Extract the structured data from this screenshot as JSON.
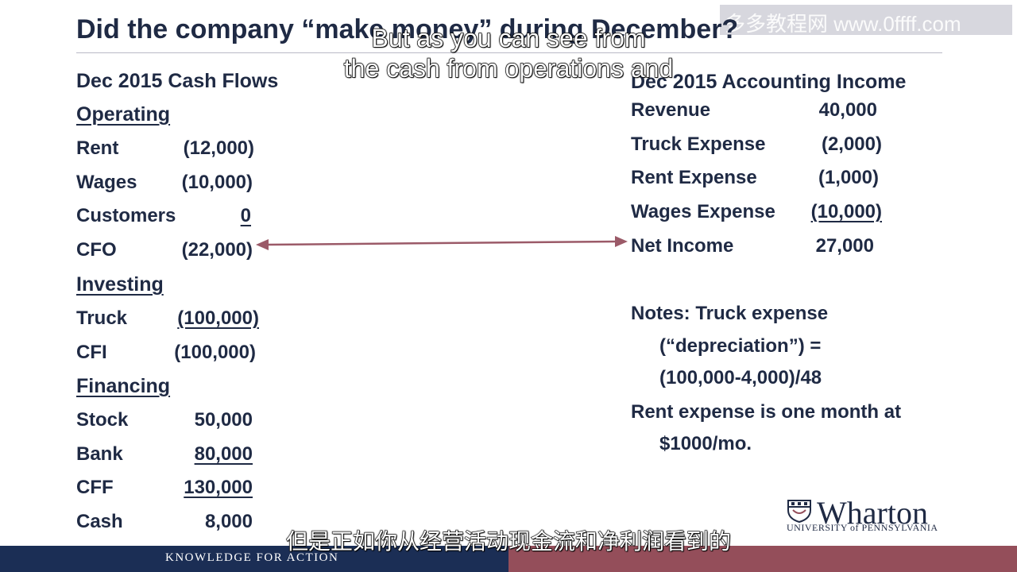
{
  "slide": {
    "title": "Did the company “make money” during December?",
    "cash_flows": {
      "heading": "Dec 2015 Cash Flows",
      "operating": {
        "heading": "Operating",
        "rows": [
          {
            "label": "Rent",
            "value": "(12,000)"
          },
          {
            "label": "Wages",
            "value": "(10,000)"
          },
          {
            "label": "Customers",
            "value": "0"
          },
          {
            "label": "CFO",
            "value": "(22,000)"
          }
        ]
      },
      "investing": {
        "heading": "Investing",
        "rows": [
          {
            "label": "Truck",
            "value": "(100,000)"
          },
          {
            "label": "CFI",
            "value": "(100,000)"
          }
        ]
      },
      "financing": {
        "heading": "Financing",
        "rows": [
          {
            "label": "Stock",
            "value": "50,000"
          },
          {
            "label": "Bank",
            "value": "80,000"
          },
          {
            "label": "CFF",
            "value": "130,000"
          },
          {
            "label": "Cash",
            "value": "8,000"
          }
        ]
      }
    },
    "income": {
      "heading": "Dec 2015 Accounting Income",
      "rows": [
        {
          "label": "Revenue",
          "value": "40,000"
        },
        {
          "label": "Truck Expense",
          "value": "(2,000)"
        },
        {
          "label": "Rent Expense",
          "value": "(1,000)"
        },
        {
          "label": "Wages Expense",
          "value": "(10,000)"
        },
        {
          "label": "Net Income",
          "value": "27,000"
        }
      ]
    },
    "notes": {
      "line1": "Notes: Truck expense",
      "line2": "(“depreciation”) =",
      "line3": "(100,000-4,000)/48",
      "line4": "Rent expense is one month at",
      "line5": "$1000/mo."
    },
    "footer": {
      "tagline": "KNOWLEDGE FOR ACTION"
    },
    "logo": {
      "name": "Wharton",
      "subtitle": "UNIVERSITY of PENNSYLVANIA"
    }
  },
  "subtitles": {
    "english_line1": "But as you can see from",
    "english_line2": "the cash from operations and",
    "chinese": "但是正如你从经营活动现金流和净利润看到的"
  },
  "watermark": {
    "text": "多多教程网 www.0ffff.com"
  },
  "colors": {
    "text": "#1f2a44",
    "arrow": "#9b5a68",
    "footer_left": "#1b2e55",
    "footer_right": "#944e5a"
  }
}
